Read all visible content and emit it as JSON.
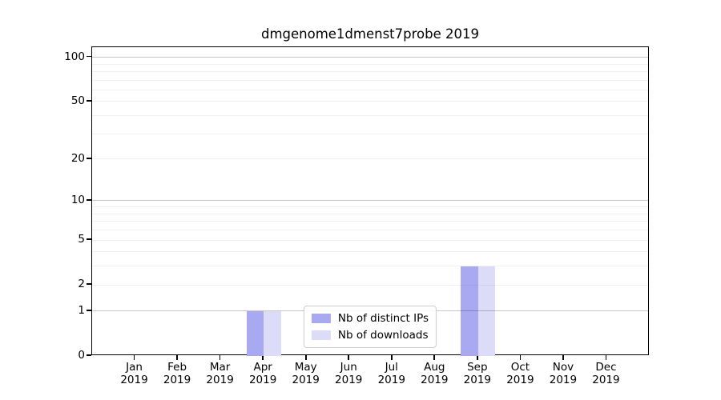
{
  "chart_data": {
    "type": "bar",
    "title": "dmgenome1dmenst7probe 2019",
    "categories": [
      "Jan",
      "Feb",
      "Mar",
      "Apr",
      "May",
      "Jun",
      "Jul",
      "Aug",
      "Sep",
      "Oct",
      "Nov",
      "Dec"
    ],
    "x_year": "2019",
    "series": [
      {
        "name": "Nb of distinct IPs",
        "color": "#a9a9f1",
        "values": [
          0,
          0,
          0,
          1,
          0,
          0,
          0,
          0,
          3,
          0,
          0,
          0
        ]
      },
      {
        "name": "Nb of downloads",
        "color": "#dcdcf8",
        "values": [
          0,
          0,
          0,
          1,
          0,
          0,
          0,
          0,
          3,
          0,
          0,
          0
        ]
      }
    ],
    "y_scale": "log1p",
    "y_tick_labels": [
      0,
      1,
      2,
      5,
      10,
      20,
      50,
      100
    ],
    "y_major_gridlines": [
      1,
      10,
      100
    ],
    "y_minor_gridlines": [
      2,
      3,
      4,
      5,
      6,
      7,
      8,
      9,
      20,
      30,
      40,
      50,
      60,
      70,
      80,
      90
    ],
    "ylim": [
      0,
      117
    ],
    "xlim_units": 13,
    "bar_width_units": 0.4,
    "grid": true,
    "legend": {
      "position": "lower center",
      "entries": [
        "Nb of distinct IPs",
        "Nb of downloads"
      ]
    },
    "colors": {
      "axis": "#000000",
      "major_grid": "rgba(0,0,0,0.22)",
      "minor_grid": "rgba(0,0,0,0.06)",
      "background": "#ffffff"
    }
  }
}
